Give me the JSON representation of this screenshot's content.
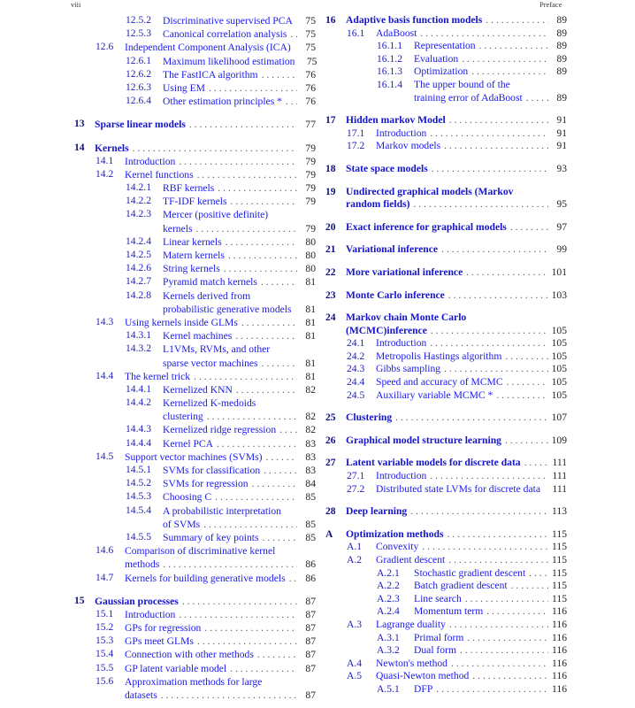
{
  "header": {
    "page_number": "viii",
    "running_title": "Preface"
  },
  "columns": [
    [
      {
        "level": 2,
        "num": "12.5.2",
        "title": [
          "Discriminative supervised PCA"
        ],
        "page": "75",
        "leader": false
      },
      {
        "level": 2,
        "num": "12.5.3",
        "title": [
          "Canonical correlation analysis"
        ],
        "page": "75"
      },
      {
        "level": 1,
        "num": "12.6",
        "title": [
          "Independent Component Analysis (ICA)"
        ],
        "page": "75",
        "leader": false
      },
      {
        "level": 2,
        "num": "12.6.1",
        "title": [
          "Maximum likelihood estimation"
        ],
        "page": "75",
        "leader": false
      },
      {
        "level": 2,
        "num": "12.6.2",
        "title": [
          "The FastICA algorithm"
        ],
        "page": "76"
      },
      {
        "level": 2,
        "num": "12.6.3",
        "title": [
          "Using EM"
        ],
        "page": "76"
      },
      {
        "level": 2,
        "num": "12.6.4",
        "title": [
          "Other estimation principles *"
        ],
        "page": "76"
      },
      {
        "level": 0,
        "num": "13",
        "title": [
          "Sparse linear models"
        ],
        "page": "77"
      },
      {
        "level": 0,
        "num": "14",
        "title": [
          "Kernels"
        ],
        "page": "79"
      },
      {
        "level": 1,
        "num": "14.1",
        "title": [
          "Introduction"
        ],
        "page": "79"
      },
      {
        "level": 1,
        "num": "14.2",
        "title": [
          "Kernel functions"
        ],
        "page": "79"
      },
      {
        "level": 2,
        "num": "14.2.1",
        "title": [
          "RBF kernels"
        ],
        "page": "79"
      },
      {
        "level": 2,
        "num": "14.2.2",
        "title": [
          "TF-IDF kernels"
        ],
        "page": "79"
      },
      {
        "level": 2,
        "num": "14.2.3",
        "title": [
          "Mercer (positive definite)",
          "kernels"
        ],
        "page": "79"
      },
      {
        "level": 2,
        "num": "14.2.4",
        "title": [
          "Linear kernels"
        ],
        "page": "80"
      },
      {
        "level": 2,
        "num": "14.2.5",
        "title": [
          "Matern kernels"
        ],
        "page": "80"
      },
      {
        "level": 2,
        "num": "14.2.6",
        "title": [
          "String kernels"
        ],
        "page": "80"
      },
      {
        "level": 2,
        "num": "14.2.7",
        "title": [
          "Pyramid match kernels"
        ],
        "page": "81"
      },
      {
        "level": 2,
        "num": "14.2.8",
        "title": [
          "Kernels derived from",
          "probabilistic generative models"
        ],
        "page": "81",
        "leader": false
      },
      {
        "level": 1,
        "num": "14.3",
        "title": [
          "Using kernels inside GLMs"
        ],
        "page": "81"
      },
      {
        "level": 2,
        "num": "14.3.1",
        "title": [
          "Kernel machines"
        ],
        "page": "81"
      },
      {
        "level": 2,
        "num": "14.3.2",
        "title": [
          "L1VMs, RVMs, and other",
          "sparse vector machines"
        ],
        "page": "81"
      },
      {
        "level": 1,
        "num": "14.4",
        "title": [
          "The kernel trick"
        ],
        "page": "81"
      },
      {
        "level": 2,
        "num": "14.4.1",
        "title": [
          "Kernelized KNN"
        ],
        "page": "82"
      },
      {
        "level": 2,
        "num": "14.4.2",
        "title": [
          "Kernelized K-medoids",
          "clustering"
        ],
        "page": "82"
      },
      {
        "level": 2,
        "num": "14.4.3",
        "title": [
          "Kernelized ridge regression"
        ],
        "page": "82"
      },
      {
        "level": 2,
        "num": "14.4.4",
        "title": [
          "Kernel PCA"
        ],
        "page": "83"
      },
      {
        "level": 1,
        "num": "14.5",
        "title": [
          "Support vector machines (SVMs)"
        ],
        "page": "83"
      },
      {
        "level": 2,
        "num": "14.5.1",
        "title": [
          "SVMs for classification"
        ],
        "page": "83"
      },
      {
        "level": 2,
        "num": "14.5.2",
        "title": [
          "SVMs for regression"
        ],
        "page": "84"
      },
      {
        "level": 2,
        "num": "14.5.3",
        "title": [
          "Choosing C"
        ],
        "page": "85"
      },
      {
        "level": 2,
        "num": "14.5.4",
        "title": [
          "A probabilistic interpretation",
          "of SVMs"
        ],
        "page": "85"
      },
      {
        "level": 2,
        "num": "14.5.5",
        "title": [
          "Summary of key points"
        ],
        "page": "85"
      },
      {
        "level": 1,
        "num": "14.6",
        "title": [
          "Comparison of discriminative kernel",
          "methods"
        ],
        "page": "86"
      },
      {
        "level": 1,
        "num": "14.7",
        "title": [
          "Kernels for building generative models"
        ],
        "page": "86"
      },
      {
        "level": 0,
        "num": "15",
        "title": [
          "Gaussian processes"
        ],
        "page": "87"
      },
      {
        "level": 1,
        "num": "15.1",
        "title": [
          "Introduction"
        ],
        "page": "87"
      },
      {
        "level": 1,
        "num": "15.2",
        "title": [
          "GPs for regression"
        ],
        "page": "87"
      },
      {
        "level": 1,
        "num": "15.3",
        "title": [
          "GPs meet GLMs"
        ],
        "page": "87"
      },
      {
        "level": 1,
        "num": "15.4",
        "title": [
          "Connection with other methods"
        ],
        "page": "87"
      },
      {
        "level": 1,
        "num": "15.5",
        "title": [
          "GP latent variable model"
        ],
        "page": "87"
      },
      {
        "level": 1,
        "num": "15.6",
        "title": [
          "Approximation methods for large",
          "datasets"
        ],
        "page": "87"
      }
    ],
    [
      {
        "level": 0,
        "num": "16",
        "title": [
          "Adaptive basis function models"
        ],
        "page": "89",
        "first": true
      },
      {
        "level": 1,
        "num": "16.1",
        "title": [
          "AdaBoost"
        ],
        "page": "89"
      },
      {
        "level": 2,
        "num": "16.1.1",
        "title": [
          "Representation"
        ],
        "page": "89"
      },
      {
        "level": 2,
        "num": "16.1.2",
        "title": [
          "Evaluation"
        ],
        "page": "89"
      },
      {
        "level": 2,
        "num": "16.1.3",
        "title": [
          "Optimization"
        ],
        "page": "89"
      },
      {
        "level": 2,
        "num": "16.1.4",
        "title": [
          "The upper bound of the",
          "training error of AdaBoost"
        ],
        "page": "89"
      },
      {
        "level": 0,
        "num": "17",
        "title": [
          "Hidden markov Model"
        ],
        "page": "91"
      },
      {
        "level": 1,
        "num": "17.1",
        "title": [
          "Introduction"
        ],
        "page": "91"
      },
      {
        "level": 1,
        "num": "17.2",
        "title": [
          "Markov models"
        ],
        "page": "91"
      },
      {
        "level": 0,
        "num": "18",
        "title": [
          "State space models"
        ],
        "page": "93"
      },
      {
        "level": 0,
        "num": "19",
        "title": [
          "Undirected graphical models (Markov",
          "random fields)"
        ],
        "page": "95"
      },
      {
        "level": 0,
        "num": "20",
        "title": [
          "Exact inference for graphical models"
        ],
        "page": "97"
      },
      {
        "level": 0,
        "num": "21",
        "title": [
          "Variational inference"
        ],
        "page": "99"
      },
      {
        "level": 0,
        "num": "22",
        "title": [
          "More variational inference"
        ],
        "page": "101"
      },
      {
        "level": 0,
        "num": "23",
        "title": [
          "Monte Carlo inference"
        ],
        "page": "103"
      },
      {
        "level": 0,
        "num": "24",
        "title": [
          "Markov chain Monte Carlo",
          "(MCMC)inference"
        ],
        "page": "105"
      },
      {
        "level": 1,
        "num": "24.1",
        "title": [
          "Introduction"
        ],
        "page": "105"
      },
      {
        "level": 1,
        "num": "24.2",
        "title": [
          "Metropolis Hastings algorithm"
        ],
        "page": "105"
      },
      {
        "level": 1,
        "num": "24.3",
        "title": [
          "Gibbs sampling"
        ],
        "page": "105"
      },
      {
        "level": 1,
        "num": "24.4",
        "title": [
          "Speed and accuracy of MCMC"
        ],
        "page": "105"
      },
      {
        "level": 1,
        "num": "24.5",
        "title": [
          "Auxiliary variable MCMC *"
        ],
        "page": "105"
      },
      {
        "level": 0,
        "num": "25",
        "title": [
          "Clustering"
        ],
        "page": "107"
      },
      {
        "level": 0,
        "num": "26",
        "title": [
          "Graphical model structure learning"
        ],
        "page": "109"
      },
      {
        "level": 0,
        "num": "27",
        "title": [
          "Latent variable models for discrete data"
        ],
        "page": "111"
      },
      {
        "level": 1,
        "num": "27.1",
        "title": [
          "Introduction"
        ],
        "page": "111"
      },
      {
        "level": 1,
        "num": "27.2",
        "title": [
          "Distributed state LVMs for discrete data"
        ],
        "page": "111",
        "leader": false
      },
      {
        "level": 0,
        "num": "28",
        "title": [
          "Deep learning"
        ],
        "page": "113"
      },
      {
        "level": 0,
        "num": "A",
        "title": [
          "Optimization methods"
        ],
        "page": "115"
      },
      {
        "level": 1,
        "num": "A.1",
        "title": [
          "Convexity"
        ],
        "page": "115"
      },
      {
        "level": 1,
        "num": "A.2",
        "title": [
          "Gradient descent"
        ],
        "page": "115"
      },
      {
        "level": 2,
        "num": "A.2.1",
        "title": [
          "Stochastic gradient descent"
        ],
        "page": "115"
      },
      {
        "level": 2,
        "num": "A.2.2",
        "title": [
          "Batch gradient descent"
        ],
        "page": "115"
      },
      {
        "level": 2,
        "num": "A.2.3",
        "title": [
          "Line search"
        ],
        "page": "115"
      },
      {
        "level": 2,
        "num": "A.2.4",
        "title": [
          "Momentum term"
        ],
        "page": "116"
      },
      {
        "level": 1,
        "num": "A.3",
        "title": [
          "Lagrange duality"
        ],
        "page": "116"
      },
      {
        "level": 2,
        "num": "A.3.1",
        "title": [
          "Primal form"
        ],
        "page": "116"
      },
      {
        "level": 2,
        "num": "A.3.2",
        "title": [
          "Dual form"
        ],
        "page": "116"
      },
      {
        "level": 1,
        "num": "A.4",
        "title": [
          "Newton's method"
        ],
        "page": "116"
      },
      {
        "level": 1,
        "num": "A.5",
        "title": [
          "Quasi-Newton method"
        ],
        "page": "116"
      },
      {
        "level": 2,
        "num": "A.5.1",
        "title": [
          "DFP"
        ],
        "page": "116"
      }
    ]
  ]
}
